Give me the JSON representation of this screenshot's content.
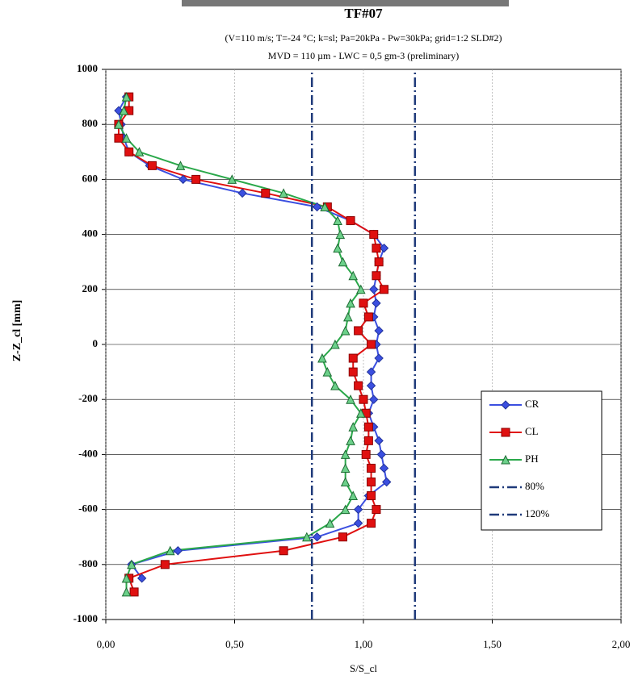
{
  "chart_data": {
    "type": "line",
    "title": "TF#07",
    "subtitle": [
      "(V=110 m/s; T=-24 °C; k=sl; Pa=20kPa - Pw=30kPa; grid=1:2 SLD#2)",
      "MVD = 110 µm - LWC = 0,5 gm-3 (preliminary)"
    ],
    "x_label": "S/S_cl",
    "y_label": "Z-Z_cl [mm]",
    "xlim": [
      0,
      2
    ],
    "ylim": [
      -1000,
      1000
    ],
    "xticks": [
      {
        "value": 0,
        "label": "0,00"
      },
      {
        "value": 0.5,
        "label": "0,50"
      },
      {
        "value": 1,
        "label": "1,00"
      },
      {
        "value": 1.5,
        "label": "1,50"
      },
      {
        "value": 2,
        "label": "2,00"
      }
    ],
    "yticks": [
      -1000,
      -800,
      -600,
      -400,
      -200,
      0,
      200,
      400,
      600,
      800,
      1000
    ],
    "grid": true,
    "legend": "right",
    "series": [
      {
        "name": "CR",
        "color": "#3b4fe0",
        "marker": "diamond",
        "x": [
          0.08,
          0.05,
          0.06,
          0.07,
          0.09,
          0.17,
          0.3,
          0.53,
          0.82,
          0.95,
          1.04,
          1.08,
          1.06,
          1.05,
          1.04,
          1.05,
          1.04,
          1.06,
          1.05,
          1.06,
          1.03,
          1.03,
          1.04,
          1.02,
          1.04,
          1.06,
          1.07,
          1.08,
          1.09,
          1.02,
          0.98,
          0.98,
          0.82,
          0.28,
          0.1,
          0.14
        ],
        "values": [
          900,
          850,
          800,
          750,
          700,
          650,
          600,
          550,
          500,
          450,
          400,
          350,
          300,
          250,
          200,
          150,
          100,
          50,
          0,
          -50,
          -100,
          -150,
          -200,
          -250,
          -300,
          -350,
          -400,
          -450,
          -500,
          -550,
          -600,
          -650,
          -700,
          -750,
          -800,
          -850
        ]
      },
      {
        "name": "CL",
        "color": "#e01010",
        "marker": "square",
        "x": [
          0.09,
          0.09,
          0.05,
          0.05,
          0.09,
          0.18,
          0.35,
          0.62,
          0.86,
          0.95,
          1.04,
          1.05,
          1.06,
          1.05,
          1.08,
          1.0,
          1.02,
          0.98,
          1.03,
          0.96,
          0.96,
          0.98,
          1.0,
          1.01,
          1.02,
          1.02,
          1.01,
          1.03,
          1.03,
          1.03,
          1.05,
          1.03,
          0.92,
          0.69,
          0.23,
          0.09,
          0.11
        ],
        "values": [
          900,
          850,
          800,
          750,
          700,
          650,
          600,
          550,
          500,
          450,
          400,
          350,
          300,
          250,
          200,
          150,
          100,
          50,
          0,
          -50,
          -100,
          -150,
          -200,
          -250,
          -300,
          -350,
          -400,
          -450,
          -500,
          -550,
          -600,
          -650,
          -700,
          -750,
          -800,
          -850,
          -900
        ]
      },
      {
        "name": "PH",
        "color": "#2aa84a",
        "marker": "triangle",
        "x": [
          0.08,
          0.07,
          0.05,
          0.08,
          0.13,
          0.29,
          0.49,
          0.69,
          0.85,
          0.9,
          0.91,
          0.9,
          0.92,
          0.96,
          0.99,
          0.95,
          0.94,
          0.93,
          0.89,
          0.84,
          0.86,
          0.89,
          0.95,
          0.99,
          0.96,
          0.95,
          0.93,
          0.93,
          0.93,
          0.96,
          0.93,
          0.87,
          0.78,
          0.25,
          0.1,
          0.08,
          0.08
        ],
        "values": [
          900,
          850,
          800,
          750,
          700,
          650,
          600,
          550,
          500,
          450,
          400,
          350,
          300,
          250,
          200,
          150,
          100,
          50,
          0,
          -50,
          -100,
          -150,
          -200,
          -250,
          -300,
          -350,
          -400,
          -450,
          -500,
          -550,
          -600,
          -650,
          -700,
          -750,
          -800,
          -850,
          -900
        ]
      },
      {
        "name": "80%",
        "color": "#1f3a7a",
        "marker": "none",
        "dash": "dash-dot",
        "x": [
          0.8,
          0.8
        ],
        "values": [
          -1000,
          1000
        ]
      },
      {
        "name": "120%",
        "color": "#1f3a7a",
        "marker": "none",
        "dash": "dash-dot",
        "x": [
          1.2,
          1.2
        ],
        "values": [
          -1000,
          1000
        ]
      }
    ]
  }
}
